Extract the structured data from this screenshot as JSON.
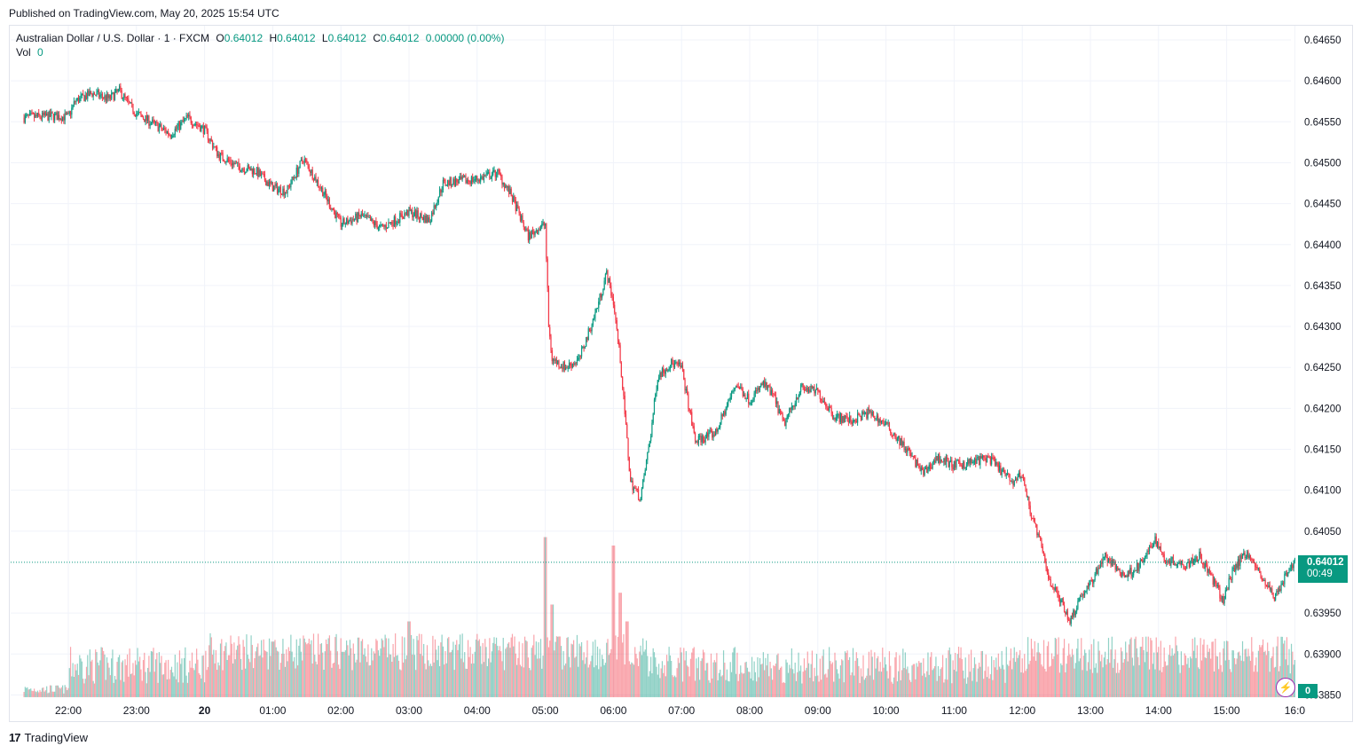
{
  "header": {
    "published": "Published on TradingView.com, May 20, 2025 15:54 UTC"
  },
  "legend": {
    "symbol": "Australian Dollar / U.S. Dollar · 1 · FXCM",
    "o_label": "O",
    "o_value": "0.64012",
    "h_label": "H",
    "h_value": "0.64012",
    "l_label": "L",
    "l_value": "0.64012",
    "c_label": "C",
    "c_value": "0.64012",
    "change": "0.00000 (0.00%)",
    "vol_label": "Vol",
    "vol_value": "0"
  },
  "badges": {
    "last_price": "0.64012",
    "countdown": "00:49",
    "volume": "0"
  },
  "footer": {
    "brand": "TradingView",
    "logo_icon": "tradingview-logo-icon"
  },
  "colors": {
    "up": "#089981",
    "down": "#f23645",
    "grid": "#f0f3fa",
    "text": "#131722"
  },
  "chart_data": {
    "type": "candlestick",
    "title": "Australian Dollar / U.S. Dollar · 1 · FXCM",
    "y_ticks": [
      "0.64650",
      "0.64600",
      "0.64550",
      "0.64500",
      "0.64450",
      "0.64400",
      "0.64350",
      "0.64300",
      "0.64250",
      "0.64200",
      "0.64150",
      "0.64100",
      "0.64050",
      "0.63950",
      "0.63900",
      "0.63850"
    ],
    "ylim": [
      0.6385,
      0.6465
    ],
    "x_ticks": [
      "22:00",
      "23:00",
      "20",
      "01:00",
      "02:00",
      "03:00",
      "04:00",
      "05:00",
      "06:00",
      "07:00",
      "08:00",
      "09:00",
      "10:00",
      "11:00",
      "12:00",
      "13:00",
      "14:00",
      "15:00",
      "16:0"
    ],
    "x_tick_hours": [
      22,
      23,
      24,
      25,
      26,
      27,
      28,
      29,
      30,
      31,
      32,
      33,
      34,
      35,
      36,
      37,
      38,
      39,
      40
    ],
    "x_start_hour": 21.35,
    "x_end_hour": 40.0,
    "last_price": 0.64012,
    "price_path": [
      [
        21.35,
        0.64555
      ],
      [
        21.75,
        0.64557
      ],
      [
        22.0,
        0.64556
      ],
      [
        22.1,
        0.64575
      ],
      [
        22.35,
        0.64585
      ],
      [
        22.6,
        0.64578
      ],
      [
        22.75,
        0.64588
      ],
      [
        22.9,
        0.6457
      ],
      [
        23.0,
        0.6456
      ],
      [
        23.3,
        0.64545
      ],
      [
        23.5,
        0.64535
      ],
      [
        23.75,
        0.64555
      ],
      [
        24.0,
        0.6454
      ],
      [
        24.2,
        0.6451
      ],
      [
        24.5,
        0.64495
      ],
      [
        24.75,
        0.6449
      ],
      [
        25.0,
        0.6447
      ],
      [
        25.2,
        0.64465
      ],
      [
        25.45,
        0.64505
      ],
      [
        25.7,
        0.6447
      ],
      [
        26.0,
        0.64425
      ],
      [
        26.3,
        0.64435
      ],
      [
        26.6,
        0.6442
      ],
      [
        27.0,
        0.6444
      ],
      [
        27.3,
        0.6443
      ],
      [
        27.5,
        0.64475
      ],
      [
        27.8,
        0.64478
      ],
      [
        28.0,
        0.6448
      ],
      [
        28.3,
        0.64488
      ],
      [
        28.5,
        0.6446
      ],
      [
        28.75,
        0.6441
      ],
      [
        28.9,
        0.6442
      ],
      [
        29.0,
        0.64425
      ],
      [
        29.05,
        0.643
      ],
      [
        29.1,
        0.6426
      ],
      [
        29.3,
        0.6425
      ],
      [
        29.5,
        0.6426
      ],
      [
        29.75,
        0.6432
      ],
      [
        29.9,
        0.64365
      ],
      [
        30.0,
        0.6433
      ],
      [
        30.1,
        0.6426
      ],
      [
        30.25,
        0.6411
      ],
      [
        30.4,
        0.6409
      ],
      [
        30.55,
        0.6417
      ],
      [
        30.65,
        0.6424
      ],
      [
        30.85,
        0.64255
      ],
      [
        31.0,
        0.6425
      ],
      [
        31.2,
        0.6416
      ],
      [
        31.5,
        0.6417
      ],
      [
        31.8,
        0.6423
      ],
      [
        32.0,
        0.6421
      ],
      [
        32.2,
        0.6423
      ],
      [
        32.35,
        0.64215
      ],
      [
        32.5,
        0.6418
      ],
      [
        32.75,
        0.64225
      ],
      [
        33.0,
        0.6422
      ],
      [
        33.25,
        0.6419
      ],
      [
        33.5,
        0.64185
      ],
      [
        33.75,
        0.64195
      ],
      [
        34.0,
        0.6418
      ],
      [
        34.3,
        0.6415
      ],
      [
        34.55,
        0.6412
      ],
      [
        34.75,
        0.6414
      ],
      [
        35.0,
        0.6413
      ],
      [
        35.3,
        0.64135
      ],
      [
        35.5,
        0.6414
      ],
      [
        35.85,
        0.6411
      ],
      [
        36.0,
        0.6412
      ],
      [
        36.1,
        0.6408
      ],
      [
        36.25,
        0.6404
      ],
      [
        36.4,
        0.6399
      ],
      [
        36.6,
        0.6396
      ],
      [
        36.7,
        0.6394
      ],
      [
        36.85,
        0.6397
      ],
      [
        37.0,
        0.63985
      ],
      [
        37.2,
        0.6402
      ],
      [
        37.5,
        0.63995
      ],
      [
        37.75,
        0.6401
      ],
      [
        37.95,
        0.6404
      ],
      [
        38.1,
        0.64015
      ],
      [
        38.4,
        0.6401
      ],
      [
        38.6,
        0.6402
      ],
      [
        38.8,
        0.6399
      ],
      [
        38.95,
        0.63965
      ],
      [
        39.1,
        0.64005
      ],
      [
        39.3,
        0.64025
      ],
      [
        39.5,
        0.63995
      ],
      [
        39.7,
        0.6397
      ],
      [
        39.9,
        0.64
      ],
      [
        40.0,
        0.64012
      ]
    ],
    "volume_spikes": [
      [
        27.0,
        0.45
      ],
      [
        29.0,
        0.95
      ],
      [
        30.0,
        0.9
      ],
      [
        29.1,
        0.55
      ],
      [
        30.1,
        0.62
      ],
      [
        25.0,
        0.33
      ],
      [
        30.2,
        0.45
      ]
    ]
  }
}
